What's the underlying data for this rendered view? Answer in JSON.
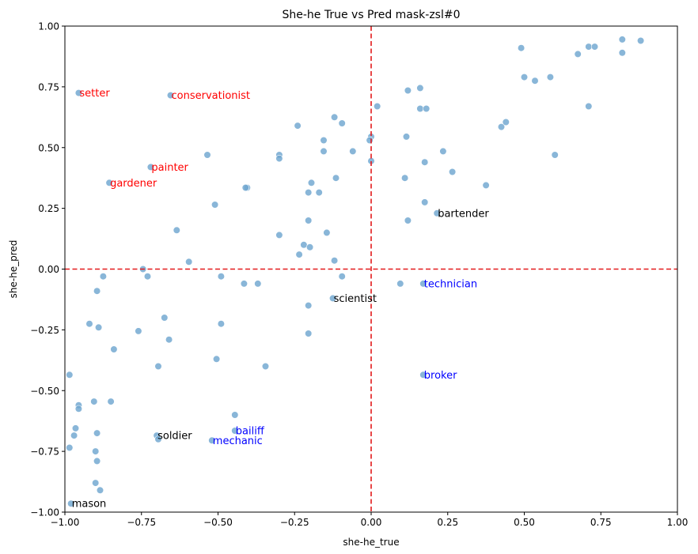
{
  "chart_data": {
    "type": "scatter",
    "title": "She-he True vs Pred mask-zsl#0",
    "xlabel": "she-he_true",
    "ylabel": "she-he_pred",
    "xlim": [
      -1.0,
      1.0
    ],
    "ylim": [
      -1.0,
      1.0
    ],
    "xticks": [
      "−1.00",
      "−0.75",
      "−0.50",
      "−0.25",
      "0.00",
      "0.25",
      "0.50",
      "0.75",
      "1.00"
    ],
    "yticks": [
      "−1.00",
      "−0.75",
      "−0.50",
      "−0.25",
      "0.00",
      "0.25",
      "0.50",
      "0.75",
      "1.00"
    ],
    "xtick_values": [
      -1.0,
      -0.75,
      -0.5,
      -0.25,
      0.0,
      0.25,
      0.5,
      0.75,
      1.0
    ],
    "ytick_values": [
      -1.0,
      -0.75,
      -0.5,
      -0.25,
      0.0,
      0.25,
      0.5,
      0.75,
      1.0
    ],
    "grid": false,
    "reference_lines": {
      "x": 0.0,
      "y": 0.0,
      "color": "#e31a1c",
      "style": "dashed"
    },
    "point_color": "#6fa6d0",
    "points": [
      [
        -0.955,
        0.725
      ],
      [
        -0.655,
        0.715
      ],
      [
        -0.72,
        0.42
      ],
      [
        -0.855,
        0.355
      ],
      [
        0.215,
        0.23
      ],
      [
        -0.125,
        -0.12
      ],
      [
        0.17,
        -0.06
      ],
      [
        0.17,
        -0.435
      ],
      [
        -0.7,
        -0.685
      ],
      [
        -0.445,
        -0.665
      ],
      [
        -0.52,
        -0.705
      ],
      [
        -0.98,
        -0.965
      ],
      [
        0.82,
        0.945
      ],
      [
        0.88,
        0.94
      ],
      [
        0.71,
        0.915
      ],
      [
        0.73,
        0.915
      ],
      [
        0.49,
        0.91
      ],
      [
        0.675,
        0.885
      ],
      [
        0.82,
        0.89
      ],
      [
        0.5,
        0.79
      ],
      [
        0.535,
        0.775
      ],
      [
        0.585,
        0.79
      ],
      [
        0.71,
        0.67
      ],
      [
        0.12,
        0.735
      ],
      [
        0.16,
        0.745
      ],
      [
        0.02,
        0.67
      ],
      [
        0.16,
        0.66
      ],
      [
        0.18,
        0.66
      ],
      [
        0.425,
        0.585
      ],
      [
        0.44,
        0.605
      ],
      [
        -0.24,
        0.59
      ],
      [
        -0.12,
        0.625
      ],
      [
        -0.095,
        0.6
      ],
      [
        -0.155,
        0.53
      ],
      [
        -0.155,
        0.485
      ],
      [
        -0.06,
        0.485
      ],
      [
        0.0,
        0.545
      ],
      [
        -0.005,
        0.53
      ],
      [
        0.115,
        0.545
      ],
      [
        0.235,
        0.485
      ],
      [
        0.6,
        0.47
      ],
      [
        0.0,
        0.445
      ],
      [
        0.175,
        0.44
      ],
      [
        0.265,
        0.4
      ],
      [
        -0.3,
        0.47
      ],
      [
        -0.3,
        0.455
      ],
      [
        -0.535,
        0.47
      ],
      [
        -0.405,
        0.335
      ],
      [
        -0.41,
        0.335
      ],
      [
        -0.195,
        0.355
      ],
      [
        -0.115,
        0.375
      ],
      [
        0.11,
        0.375
      ],
      [
        0.375,
        0.345
      ],
      [
        -0.205,
        0.315
      ],
      [
        -0.17,
        0.315
      ],
      [
        -0.51,
        0.265
      ],
      [
        0.175,
        0.275
      ],
      [
        -0.205,
        0.2
      ],
      [
        0.12,
        0.2
      ],
      [
        -0.635,
        0.16
      ],
      [
        -0.3,
        0.14
      ],
      [
        -0.145,
        0.15
      ],
      [
        -0.22,
        0.1
      ],
      [
        -0.2,
        0.09
      ],
      [
        -0.235,
        0.06
      ],
      [
        -0.12,
        0.035
      ],
      [
        -0.595,
        0.03
      ],
      [
        -0.745,
        0.0
      ],
      [
        -0.73,
        -0.03
      ],
      [
        -0.875,
        -0.03
      ],
      [
        -0.49,
        -0.03
      ],
      [
        -0.095,
        -0.03
      ],
      [
        -0.415,
        -0.06
      ],
      [
        -0.37,
        -0.06
      ],
      [
        0.095,
        -0.06
      ],
      [
        -0.895,
        -0.09
      ],
      [
        -0.205,
        -0.15
      ],
      [
        -0.92,
        -0.225
      ],
      [
        -0.89,
        -0.24
      ],
      [
        -0.49,
        -0.225
      ],
      [
        -0.76,
        -0.255
      ],
      [
        -0.205,
        -0.265
      ],
      [
        -0.675,
        -0.2
      ],
      [
        -0.66,
        -0.29
      ],
      [
        -0.84,
        -0.33
      ],
      [
        -0.505,
        -0.37
      ],
      [
        -0.695,
        -0.4
      ],
      [
        -0.345,
        -0.4
      ],
      [
        -0.985,
        -0.435
      ],
      [
        -0.955,
        -0.56
      ],
      [
        -0.955,
        -0.575
      ],
      [
        -0.905,
        -0.545
      ],
      [
        -0.85,
        -0.545
      ],
      [
        -0.445,
        -0.6
      ],
      [
        -0.965,
        -0.655
      ],
      [
        -0.97,
        -0.685
      ],
      [
        -0.895,
        -0.675
      ],
      [
        -0.695,
        -0.7
      ],
      [
        -0.985,
        -0.735
      ],
      [
        -0.9,
        -0.75
      ],
      [
        -0.895,
        -0.79
      ],
      [
        -0.9,
        -0.88
      ],
      [
        -0.885,
        -0.91
      ]
    ],
    "annotations": [
      {
        "label": "setter",
        "x": -0.955,
        "y": 0.725,
        "color": "#ff0000"
      },
      {
        "label": "conservationist",
        "x": -0.655,
        "y": 0.715,
        "color": "#ff0000"
      },
      {
        "label": "painter",
        "x": -0.72,
        "y": 0.42,
        "color": "#ff0000"
      },
      {
        "label": "gardener",
        "x": -0.855,
        "y": 0.355,
        "color": "#ff0000"
      },
      {
        "label": "bartender",
        "x": 0.215,
        "y": 0.23,
        "color": "#000000"
      },
      {
        "label": "scientist",
        "x": -0.125,
        "y": -0.12,
        "color": "#000000"
      },
      {
        "label": "technician",
        "x": 0.17,
        "y": -0.06,
        "color": "#0000ff"
      },
      {
        "label": "broker",
        "x": 0.17,
        "y": -0.435,
        "color": "#0000ff"
      },
      {
        "label": "soldier",
        "x": -0.7,
        "y": -0.685,
        "color": "#000000"
      },
      {
        "label": "bailiff",
        "x": -0.445,
        "y": -0.665,
        "color": "#0000ff"
      },
      {
        "label": "mechanic",
        "x": -0.52,
        "y": -0.705,
        "color": "#0000ff"
      },
      {
        "label": "mason",
        "x": -0.98,
        "y": -0.965,
        "color": "#000000"
      }
    ]
  }
}
